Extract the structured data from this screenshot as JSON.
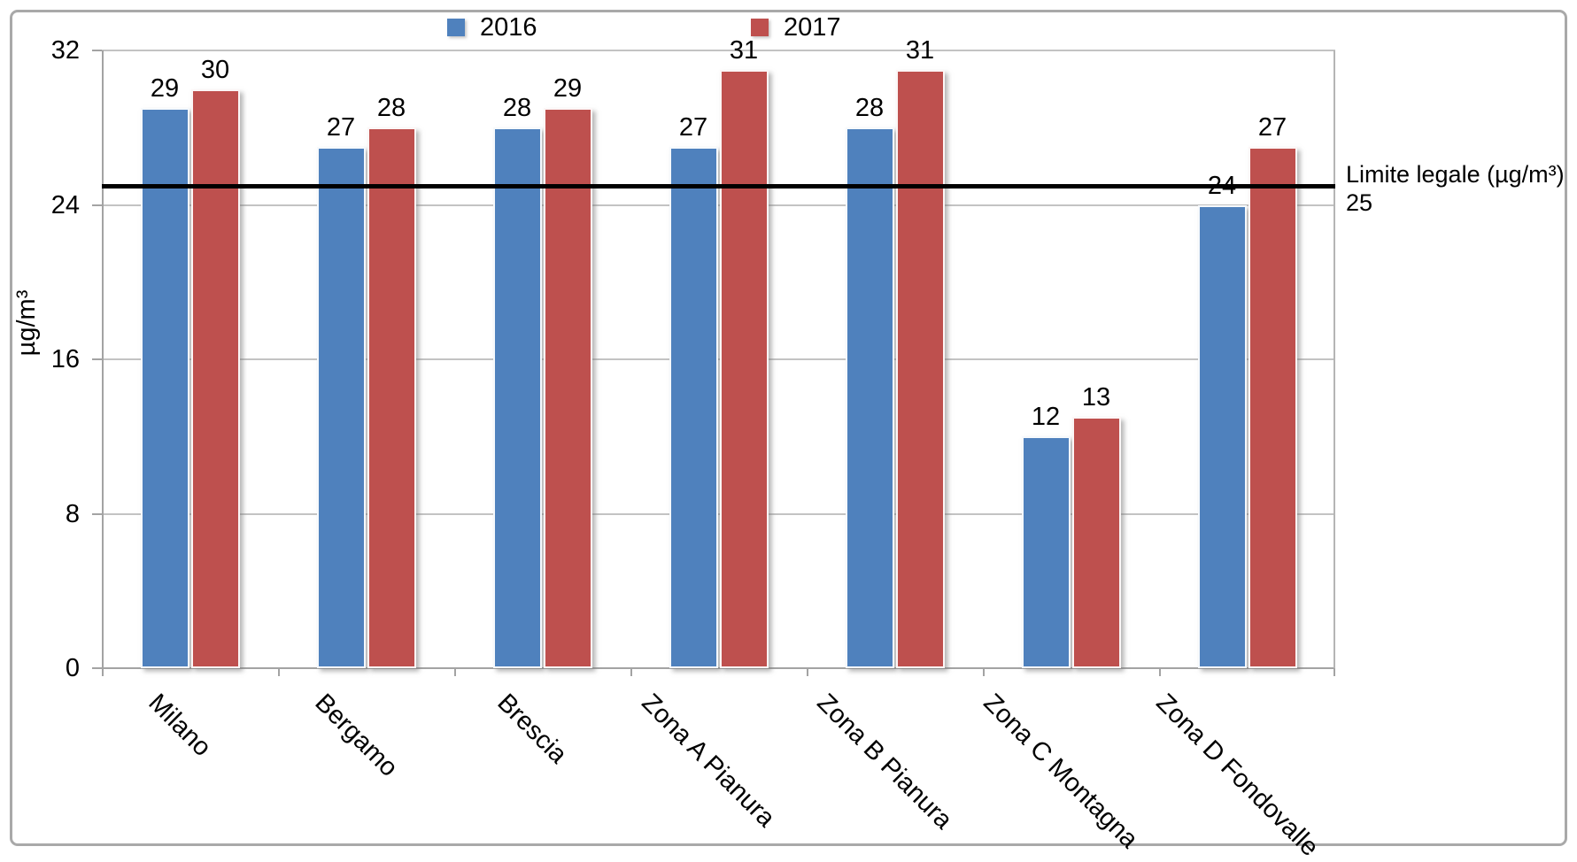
{
  "chart_data": {
    "type": "bar",
    "categories": [
      "Milano",
      "Bergamo",
      "Brescia",
      "Zona A Pianura",
      "Zona B Pianura",
      "Zona C Montagna",
      "Zona D Fondovalle"
    ],
    "series": [
      {
        "name": "2016",
        "color": "#4F81BD",
        "values": [
          29,
          27,
          28,
          27,
          28,
          12,
          24
        ]
      },
      {
        "name": "2017",
        "color": "#BE504E",
        "values": [
          30,
          28,
          29,
          31,
          31,
          13,
          27
        ]
      }
    ],
    "ylabel": "µg/m³",
    "xlabel": "",
    "title": "",
    "ylim": [
      0,
      32
    ],
    "yticks": [
      0,
      8,
      16,
      24,
      32
    ],
    "grid": true,
    "data_labels": true,
    "legend_position": "top",
    "reference_line": {
      "value": 25,
      "label": "Limite legale (µg/m³)",
      "value_label": "25",
      "color": "#000000"
    }
  }
}
